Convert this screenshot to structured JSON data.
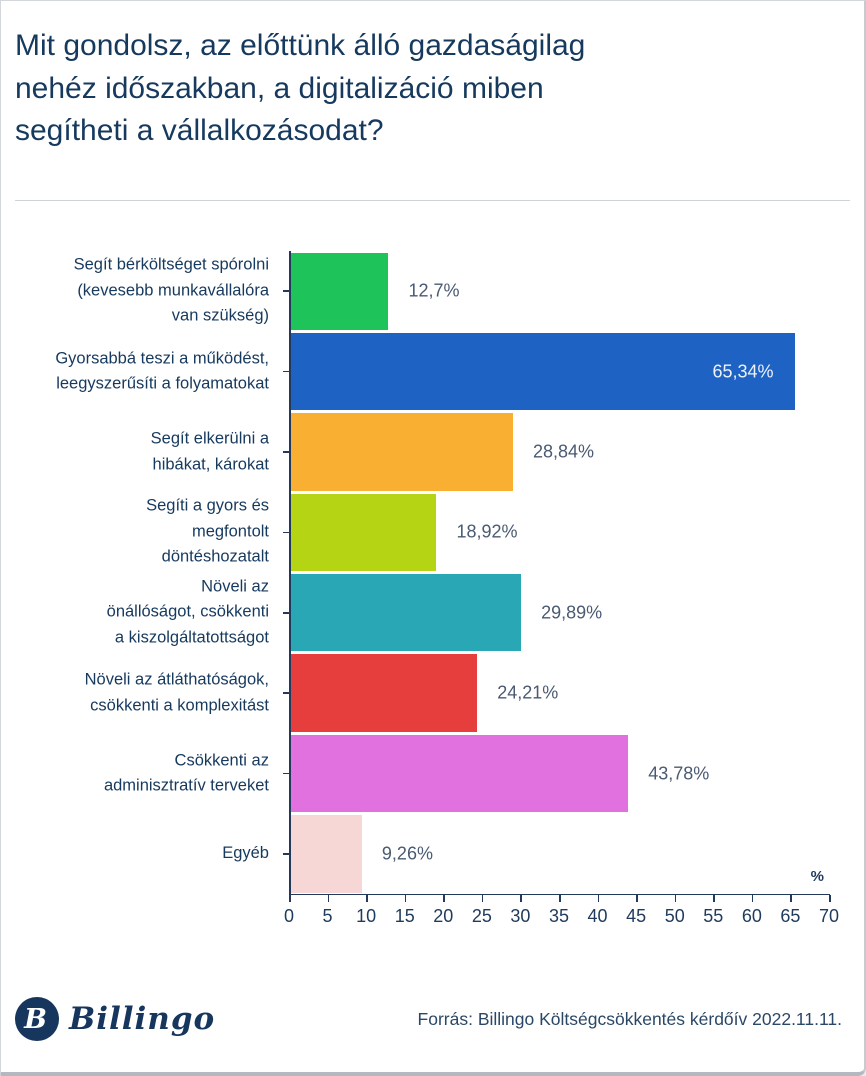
{
  "title": "Mit gondolsz, az előttünk álló gazdaságilag\nnehéz időszakban, a digitalizáció miben\nsegítheti a vállalkozásodat?",
  "chart_data": {
    "type": "bar",
    "orientation": "horizontal",
    "categories": [
      "Segít bérköltséget spórolni\n(kevesebb munkavállalóra\nvan szükség)",
      "Gyorsabbá teszi a működést,\nleegyszerűsíti a folyamatokat",
      "Segít elkerülni a\nhibákat, károkat",
      "Segíti a gyors és\nmegfontolt\ndöntéshozatalt",
      "Növeli az\nönállóságot, csökkenti\na kiszolgáltatottságot",
      "Növeli az átláthatóságok,\ncsökkenti a komplexitást",
      "Csökkenti az\nadminisztratív terveket",
      "Egyéb"
    ],
    "values": [
      12.7,
      65.34,
      28.84,
      18.92,
      29.89,
      24.21,
      43.78,
      9.26
    ],
    "value_labels": [
      "12,7%",
      "65,34%",
      "28,84%",
      "18,92%",
      "29,89%",
      "24,21%",
      "43,78%",
      "9,26%"
    ],
    "colors": [
      "#1ec45a",
      "#1e63c4",
      "#f9b032",
      "#b4d414",
      "#2aa7b4",
      "#e63d3d",
      "#e171de",
      "#f6d7d5"
    ],
    "xlim": [
      0,
      70
    ],
    "x_tick_labels": [
      "0",
      "5",
      "10",
      "15",
      "20",
      "25",
      "30",
      "35",
      "40",
      "45",
      "50",
      "55",
      "60",
      "65",
      "70"
    ],
    "axis_unit": "%",
    "grid": false,
    "legend": false,
    "inside_label_indices": [
      1
    ]
  },
  "footer": {
    "logo_initial": "B",
    "logo_text": "Billingo",
    "source": "Forrás: Billingo Költségcsökkentés kérdőív 2022.11.11."
  },
  "theme": {
    "title_color": "#16395e",
    "axis_color": "#22395c",
    "value_label_color": "#4a5a72",
    "inside_value_label_color": "#eef2f8",
    "background": "#ffffff"
  }
}
